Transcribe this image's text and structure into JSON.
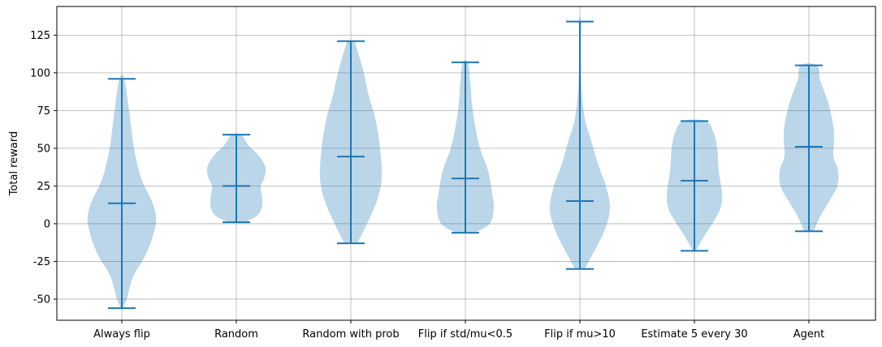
{
  "chart_data": {
    "type": "violin",
    "title": "",
    "xlabel": "",
    "ylabel": "Total reward",
    "ylim": [
      -64,
      144
    ],
    "yticks": [
      -50,
      -25,
      0,
      25,
      50,
      75,
      100,
      125
    ],
    "grid": true,
    "body_color": "#1f77b4",
    "body_opacity": 0.3,
    "line_color": "#1f77b4",
    "categories": [
      "Always flip",
      "Random",
      "Random with prob",
      "Flip if std/mu<0.5",
      "Flip if mu>10",
      "Estimate 5 every 30",
      "Agent"
    ],
    "series": [
      {
        "min": -56,
        "max": 96,
        "mean": 13.5,
        "profile": [
          [
            -56,
            1
          ],
          [
            -50,
            6
          ],
          [
            -35,
            14
          ],
          [
            -20,
            30
          ],
          [
            -5,
            40
          ],
          [
            5,
            42
          ],
          [
            15,
            37
          ],
          [
            30,
            24
          ],
          [
            50,
            15
          ],
          [
            75,
            9
          ],
          [
            96,
            3
          ]
        ]
      },
      {
        "min": 1,
        "max": 59,
        "mean": 25,
        "profile": [
          [
            1,
            10
          ],
          [
            5,
            25
          ],
          [
            10,
            31
          ],
          [
            15,
            32
          ],
          [
            20,
            31
          ],
          [
            25,
            30
          ],
          [
            30,
            34
          ],
          [
            37,
            36
          ],
          [
            45,
            28
          ],
          [
            52,
            15
          ],
          [
            59,
            6
          ]
        ]
      },
      {
        "min": -13,
        "max": 121,
        "mean": 44.5,
        "profile": [
          [
            -13,
            8
          ],
          [
            0,
            20
          ],
          [
            15,
            32
          ],
          [
            30,
            38
          ],
          [
            50,
            36
          ],
          [
            70,
            30
          ],
          [
            85,
            22
          ],
          [
            100,
            16
          ],
          [
            115,
            8
          ],
          [
            121,
            4
          ]
        ]
      },
      {
        "min": -6,
        "max": 107,
        "mean": 30,
        "profile": [
          [
            -6,
            12
          ],
          [
            0,
            30
          ],
          [
            10,
            35
          ],
          [
            20,
            33
          ],
          [
            35,
            28
          ],
          [
            50,
            18
          ],
          [
            65,
            12
          ],
          [
            80,
            8
          ],
          [
            95,
            6
          ],
          [
            107,
            3
          ]
        ]
      },
      {
        "min": -30,
        "max": 134,
        "mean": 15,
        "profile": [
          [
            -30,
            6
          ],
          [
            -20,
            16
          ],
          [
            -5,
            30
          ],
          [
            10,
            37
          ],
          [
            25,
            32
          ],
          [
            40,
            22
          ],
          [
            55,
            14
          ],
          [
            70,
            6
          ],
          [
            90,
            2
          ],
          [
            110,
            1
          ],
          [
            134,
            1
          ]
        ]
      },
      {
        "min": -18,
        "max": 68,
        "mean": 28.5,
        "profile": [
          [
            -18,
            2
          ],
          [
            -10,
            10
          ],
          [
            0,
            22
          ],
          [
            10,
            32
          ],
          [
            20,
            34
          ],
          [
            35,
            30
          ],
          [
            50,
            28
          ],
          [
            60,
            24
          ],
          [
            68,
            14
          ]
        ]
      },
      {
        "min": -5,
        "max": 105,
        "mean": 51,
        "profile": [
          [
            -5,
            6
          ],
          [
            5,
            14
          ],
          [
            15,
            25
          ],
          [
            25,
            35
          ],
          [
            35,
            36
          ],
          [
            45,
            30
          ],
          [
            55,
            31
          ],
          [
            65,
            30
          ],
          [
            80,
            24
          ],
          [
            95,
            14
          ],
          [
            105,
            10
          ]
        ]
      }
    ]
  }
}
